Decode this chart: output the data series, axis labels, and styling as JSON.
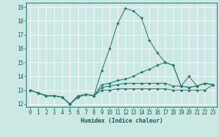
{
  "xlabel": "Humidex (Indice chaleur)",
  "ylabel": "",
  "xlim": [
    -0.5,
    23.5
  ],
  "ylim": [
    11.8,
    19.3
  ],
  "yticks": [
    12,
    13,
    14,
    15,
    16,
    17,
    18,
    19
  ],
  "xticks": [
    0,
    1,
    2,
    3,
    4,
    5,
    6,
    7,
    8,
    9,
    10,
    11,
    12,
    13,
    14,
    15,
    16,
    17,
    18,
    19,
    20,
    21,
    22,
    23
  ],
  "background_color": "#cce8e4",
  "grid_color": "#ffffff",
  "line_color": "#2a7a6e",
  "lines": [
    [
      13.0,
      12.8,
      12.6,
      12.6,
      12.5,
      12.0,
      12.6,
      12.7,
      12.6,
      14.4,
      16.0,
      17.8,
      18.9,
      18.7,
      18.2,
      16.6,
      15.7,
      15.0,
      14.8,
      13.3,
      14.0,
      13.3,
      13.5,
      13.4
    ],
    [
      13.0,
      12.8,
      12.6,
      12.6,
      12.5,
      12.0,
      12.5,
      12.7,
      12.6,
      13.4,
      13.5,
      13.7,
      13.8,
      14.0,
      14.3,
      14.5,
      14.8,
      15.0,
      14.8,
      13.3,
      13.2,
      13.3,
      13.5,
      13.4
    ],
    [
      13.0,
      12.8,
      12.6,
      12.6,
      12.5,
      12.0,
      12.5,
      12.7,
      12.6,
      13.2,
      13.3,
      13.4,
      13.5,
      13.5,
      13.5,
      13.5,
      13.5,
      13.5,
      13.3,
      13.3,
      13.2,
      13.3,
      13.5,
      13.4
    ],
    [
      13.0,
      12.8,
      12.6,
      12.6,
      12.5,
      12.0,
      12.5,
      12.7,
      12.6,
      13.0,
      13.0,
      13.1,
      13.1,
      13.1,
      13.1,
      13.1,
      13.1,
      13.1,
      13.0,
      13.0,
      13.0,
      13.0,
      13.0,
      13.4
    ]
  ],
  "tick_fontsize": 5.5,
  "xlabel_fontsize": 6.0,
  "marker_size": 2.0,
  "linewidth": 0.8
}
